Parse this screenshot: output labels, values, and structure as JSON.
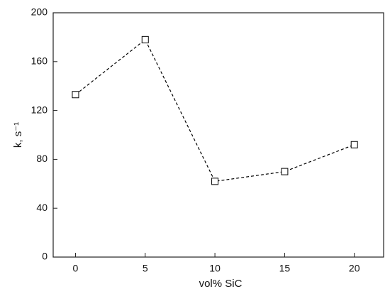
{
  "chart_data": {
    "type": "line",
    "xlabel": "vol% SiC",
    "ylabel": "k, s⁻¹",
    "x": [
      0,
      5,
      10,
      15,
      20
    ],
    "series": [
      {
        "color": "#000000",
        "values": [
          133,
          178,
          62,
          70,
          92
        ]
      }
    ],
    "xlim": [
      -1.6,
      22.1
    ],
    "xticks": [
      0,
      5,
      10,
      15,
      20
    ],
    "ylim": [
      0,
      200
    ],
    "yticks": [
      0,
      40,
      80,
      120,
      160,
      200
    ],
    "grid": false,
    "marker": "square",
    "line_style": "dashed"
  }
}
